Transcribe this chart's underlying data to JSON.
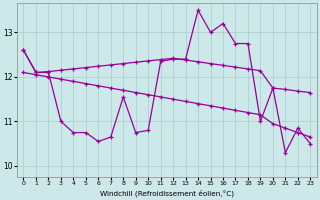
{
  "xlabel": "Windchill (Refroidissement éolien,°C)",
  "line_color": "#990099",
  "bg_color": "#cce8e8",
  "grid_color": "#aacccc",
  "ylim": [
    9.75,
    13.65
  ],
  "yticks": [
    10,
    11,
    12,
    13
  ],
  "xticks": [
    0,
    1,
    2,
    3,
    4,
    5,
    6,
    7,
    8,
    9,
    10,
    11,
    12,
    13,
    14,
    15,
    16,
    17,
    18,
    19,
    20,
    21,
    22,
    23
  ],
  "hours": [
    0,
    1,
    2,
    3,
    4,
    5,
    6,
    7,
    8,
    9,
    10,
    11,
    12,
    13,
    14,
    15,
    16,
    17,
    18,
    19,
    20,
    21,
    22,
    23
  ],
  "actual": [
    12.6,
    12.1,
    12.1,
    11.0,
    10.75,
    10.75,
    10.55,
    10.65,
    11.55,
    10.75,
    10.8,
    12.35,
    12.4,
    12.4,
    13.5,
    13.0,
    13.2,
    12.75,
    12.75,
    11.0,
    11.75,
    10.3,
    10.85,
    10.5
  ],
  "upper": [
    12.6,
    12.1,
    12.12,
    12.15,
    12.18,
    12.21,
    12.24,
    12.27,
    12.3,
    12.33,
    12.36,
    12.39,
    12.42,
    12.38,
    12.34,
    12.3,
    12.26,
    12.22,
    12.18,
    12.14,
    11.75,
    11.72,
    11.68,
    11.65
  ],
  "lower": [
    12.1,
    12.05,
    12.0,
    11.95,
    11.9,
    11.85,
    11.8,
    11.75,
    11.7,
    11.65,
    11.6,
    11.55,
    11.5,
    11.45,
    11.4,
    11.35,
    11.3,
    11.25,
    11.2,
    11.15,
    10.95,
    10.85,
    10.75,
    10.65
  ]
}
